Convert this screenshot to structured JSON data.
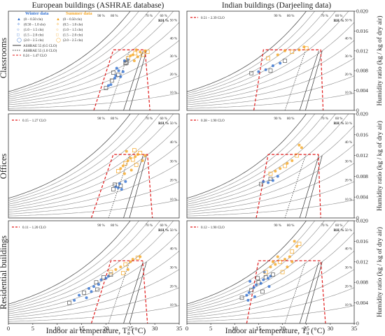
{
  "headers": {
    "left_column": "European buildings (ASHRAE database)",
    "right_column": "Indian buildings (Darjeeling data)"
  },
  "row_labels": [
    "Classrooms",
    "Offices",
    "Residential buildings"
  ],
  "axes": {
    "xlabel": "Indoor air temperature, T",
    "xlabel_sub": "a",
    "xlabel_unit": " (°C)",
    "ylabel": "Humidity ratio (kg / kg of dry air)",
    "xlim": [
      0,
      35
    ],
    "ylim": [
      0,
      0.02
    ],
    "x_ticks": [
      0,
      5,
      10,
      15,
      20,
      25,
      30,
      35
    ],
    "y_ticks": [
      "0",
      "0.004",
      "0.008",
      "0.012",
      "0.016",
      "0.020"
    ],
    "rh_curve_labels": [
      "10 %",
      "20 %",
      "30 %",
      "40 %",
      "50 %",
      "60 %",
      "70 %",
      "80 %",
      "90 %"
    ],
    "rh_axis_label": "RH %"
  },
  "legend": {
    "winter_title": "Winter data",
    "summer_title": "Summer data",
    "winter_entries": [
      {
        "marker": "▲",
        "label": "(0 – 0.50 clo)"
      },
      {
        "marker": "✧",
        "label": "(0.50 – 1.0 clo)"
      },
      {
        "marker": "○",
        "label": "(1.0 – 1.5 clo)"
      },
      {
        "marker": "□",
        "label": "(1.5 – 2.0 clo)"
      },
      {
        "marker": "◯",
        "label": "(2.0 – 2.5 clo)"
      }
    ],
    "summer_entries": [
      {
        "marker": "▲",
        "label": "(0 – 0.50 clo)"
      },
      {
        "marker": "✧",
        "label": "(0.5 – 1.0 clo)"
      },
      {
        "marker": "○",
        "label": "(1.0 – 1.5 clo)"
      },
      {
        "marker": "□",
        "label": "(1.5 – 2.0 clo)"
      },
      {
        "marker": "◯",
        "label": "(2.0 – 2.5 clo)"
      }
    ],
    "lines": [
      {
        "style": "solid",
        "label": "ASHRAE 55 (0.5 CLO)"
      },
      {
        "style": "dotted",
        "label": "ASHRAE 55 (1.0 CLO)"
      },
      {
        "style": "dashed-red",
        "label": "0.24 – 1.47 CLO"
      }
    ]
  },
  "colors": {
    "winter": "#2f6fd1",
    "summer": "#f5a623",
    "comfort_zone": "#e11b1b",
    "rh_curve": "#8a8a8a",
    "ashrae": "#333333"
  },
  "chart_data": [
    {
      "type": "scatter",
      "panel": "classrooms-europe",
      "clo_range_label": "0.24 – 1.47 CLO",
      "comfort_zone": [
        [
          17.5,
          0
        ],
        [
          21.5,
          0.0122
        ],
        [
          28,
          0.0122
        ],
        [
          29,
          0
        ]
      ],
      "series": [
        {
          "name": "Winter data",
          "points": [
            [
              20,
              0.0045
            ],
            [
              20.5,
              0.005
            ],
            [
              21,
              0.0052
            ],
            [
              21.2,
              0.006
            ],
            [
              21.8,
              0.0065
            ],
            [
              22,
              0.007
            ],
            [
              22.5,
              0.0072
            ],
            [
              23,
              0.0068
            ],
            [
              22.6,
              0.008
            ],
            [
              21.5,
              0.0076
            ],
            [
              22.2,
              0.0085
            ],
            [
              23.5,
              0.0078
            ],
            [
              24,
              0.0095
            ],
            [
              23.8,
              0.01
            ],
            [
              24.5,
              0.0102
            ],
            [
              24.2,
              0.0096
            ]
          ]
        },
        {
          "name": "Summer data",
          "points": [
            [
              24.5,
              0.0105
            ],
            [
              25,
              0.011
            ],
            [
              25.5,
              0.0112
            ],
            [
              26,
              0.0115
            ],
            [
              26.5,
              0.0108
            ],
            [
              27,
              0.0118
            ],
            [
              27.5,
              0.0112
            ],
            [
              26.2,
              0.0122
            ],
            [
              28,
              0.012
            ],
            [
              28.5,
              0.0118
            ],
            [
              25.8,
              0.01
            ]
          ]
        }
      ]
    },
    {
      "type": "scatter",
      "panel": "classrooms-india",
      "clo_range_label": "0.51 – 2.39 CLO",
      "comfort_zone": [
        [
          14,
          0
        ],
        [
          16,
          0.0122
        ],
        [
          28,
          0.0122
        ],
        [
          28.5,
          0
        ]
      ],
      "series": [
        {
          "name": "Winter data",
          "points": [
            [
              13.5,
              0.0075
            ],
            [
              15,
              0.0078
            ],
            [
              16.5,
              0.0082
            ],
            [
              17.5,
              0.008
            ],
            [
              18,
              0.009
            ],
            [
              19.5,
              0.0095
            ],
            [
              20.5,
              0.01
            ]
          ]
        },
        {
          "name": "Summer data",
          "points": [
            [
              17,
              0.0105
            ],
            [
              19,
              0.0112
            ],
            [
              20.5,
              0.012
            ],
            [
              22,
              0.0118
            ],
            [
              23.5,
              0.0122
            ],
            [
              24.5,
              0.0128
            ],
            [
              25,
              0.0125
            ]
          ]
        }
      ]
    },
    {
      "type": "scatter",
      "panel": "offices-europe",
      "clo_range_label": "0.15 – 1.27 CLO",
      "comfort_zone": [
        [
          17,
          0
        ],
        [
          21.5,
          0.0122
        ],
        [
          28.5,
          0.0122
        ],
        [
          29.5,
          0
        ]
      ],
      "series": [
        {
          "name": "Winter data",
          "points": [
            [
              21.5,
              0.0055
            ],
            [
              22,
              0.006
            ],
            [
              22.5,
              0.0058
            ],
            [
              23,
              0.0062
            ],
            [
              22.8,
              0.0066
            ],
            [
              23.2,
              0.0055
            ],
            [
              21.8,
              0.0064
            ],
            [
              24,
              0.007
            ]
          ]
        },
        {
          "name": "Summer data",
          "points": [
            [
              22.5,
              0.009
            ],
            [
              23,
              0.0095
            ],
            [
              23.5,
              0.01
            ],
            [
              24,
              0.0105
            ],
            [
              24.5,
              0.011
            ],
            [
              25,
              0.0115
            ],
            [
              25.5,
              0.0112
            ],
            [
              26,
              0.0118
            ],
            [
              26.5,
              0.0122
            ],
            [
              27,
              0.0125
            ],
            [
              23.8,
              0.0085
            ],
            [
              25.2,
              0.0092
            ],
            [
              26.2,
              0.0102
            ],
            [
              27.5,
              0.011
            ],
            [
              24.2,
              0.0128
            ],
            [
              25.8,
              0.013
            ],
            [
              28,
              0.012
            ]
          ]
        }
      ]
    },
    {
      "type": "scatter",
      "panel": "offices-india",
      "clo_range_label": "0.38 – 1.90 CLO",
      "comfort_zone": [
        [
          14.5,
          0
        ],
        [
          17,
          0.0122
        ],
        [
          27.5,
          0.0122
        ],
        [
          28,
          0
        ]
      ],
      "series": [
        {
          "name": "Winter data",
          "points": [
            [
              15.5,
              0.0065
            ],
            [
              16,
              0.007
            ],
            [
              17,
              0.0068
            ],
            [
              17.5,
              0.0075
            ],
            [
              18,
              0.0072
            ],
            [
              19,
              0.008
            ]
          ]
        },
        {
          "name": "Summer data",
          "points": [
            [
              17.5,
              0.0085
            ],
            [
              18.5,
              0.009
            ],
            [
              19.5,
              0.0095
            ],
            [
              20.5,
              0.01
            ],
            [
              21,
              0.0105
            ],
            [
              22,
              0.011
            ],
            [
              23,
              0.012
            ],
            [
              23.5,
              0.014
            ],
            [
              24,
              0.0135
            ]
          ]
        }
      ]
    },
    {
      "type": "scatter",
      "panel": "residential-europe",
      "clo_range_label": "0.11 – 1.20 CLO",
      "comfort_zone": [
        [
          17,
          0
        ],
        [
          21,
          0.0122
        ],
        [
          27.5,
          0.0122
        ],
        [
          28.5,
          0
        ]
      ],
      "series": [
        {
          "name": "Winter data",
          "points": [
            [
              12.5,
              0.004
            ],
            [
              13.5,
              0.0045
            ],
            [
              14.5,
              0.0055
            ],
            [
              15.5,
              0.006
            ],
            [
              16.5,
              0.0068
            ],
            [
              17.5,
              0.0072
            ],
            [
              18,
              0.008
            ],
            [
              18.5,
              0.0076
            ],
            [
              19,
              0.0085
            ],
            [
              19.5,
              0.009
            ],
            [
              20,
              0.0088
            ],
            [
              20.5,
              0.0092
            ],
            [
              21,
              0.0095
            ],
            [
              16,
              0.005
            ],
            [
              17,
              0.0062
            ],
            [
              18.2,
              0.0066
            ]
          ]
        },
        {
          "name": "Summer data",
          "points": [
            [
              21,
              0.01
            ],
            [
              22,
              0.0105
            ],
            [
              23,
              0.011
            ],
            [
              24,
              0.0115
            ],
            [
              25,
              0.012
            ],
            [
              25.5,
              0.0125
            ],
            [
              26.5,
              0.0128
            ],
            [
              27,
              0.013
            ],
            [
              24.5,
              0.0105
            ],
            [
              23.5,
              0.0098
            ]
          ]
        }
      ]
    },
    {
      "type": "scatter",
      "panel": "residential-india",
      "clo_range_label": "0.12 – 1.90 CLO",
      "comfort_zone": [
        [
          12.5,
          0
        ],
        [
          15,
          0.0122
        ],
        [
          28,
          0.0122
        ],
        [
          29,
          0
        ]
      ],
      "series": [
        {
          "name": "Winter data",
          "points": [
            [
              11.5,
              0.005
            ],
            [
              12.5,
              0.0055
            ],
            [
              13,
              0.006
            ],
            [
              13.5,
              0.0065
            ],
            [
              14,
              0.007
            ],
            [
              14.5,
              0.0075
            ],
            [
              15,
              0.008
            ],
            [
              15.5,
              0.0078
            ],
            [
              16,
              0.0085
            ],
            [
              16.5,
              0.009
            ],
            [
              17,
              0.0088
            ],
            [
              17.5,
              0.0092
            ],
            [
              18,
              0.0095
            ],
            [
              12.8,
              0.0045
            ],
            [
              14.2,
              0.0052
            ],
            [
              15.8,
              0.0062
            ],
            [
              17.2,
              0.0072
            ],
            [
              13.2,
              0.0082
            ],
            [
              14.8,
              0.0088
            ],
            [
              16.2,
              0.01
            ]
          ]
        },
        {
          "name": "Summer data",
          "points": [
            [
              16.5,
              0.01
            ],
            [
              17.5,
              0.011
            ],
            [
              18.5,
              0.0115
            ],
            [
              19.5,
              0.012
            ],
            [
              20.5,
              0.0125
            ],
            [
              21.5,
              0.013
            ],
            [
              22,
              0.014
            ],
            [
              23,
              0.015
            ],
            [
              22.5,
              0.016
            ],
            [
              23.5,
              0.0155
            ],
            [
              18,
              0.012
            ],
            [
              19,
              0.013
            ],
            [
              20,
              0.01
            ],
            [
              21,
              0.011
            ],
            [
              22,
              0.012
            ]
          ]
        }
      ]
    }
  ]
}
